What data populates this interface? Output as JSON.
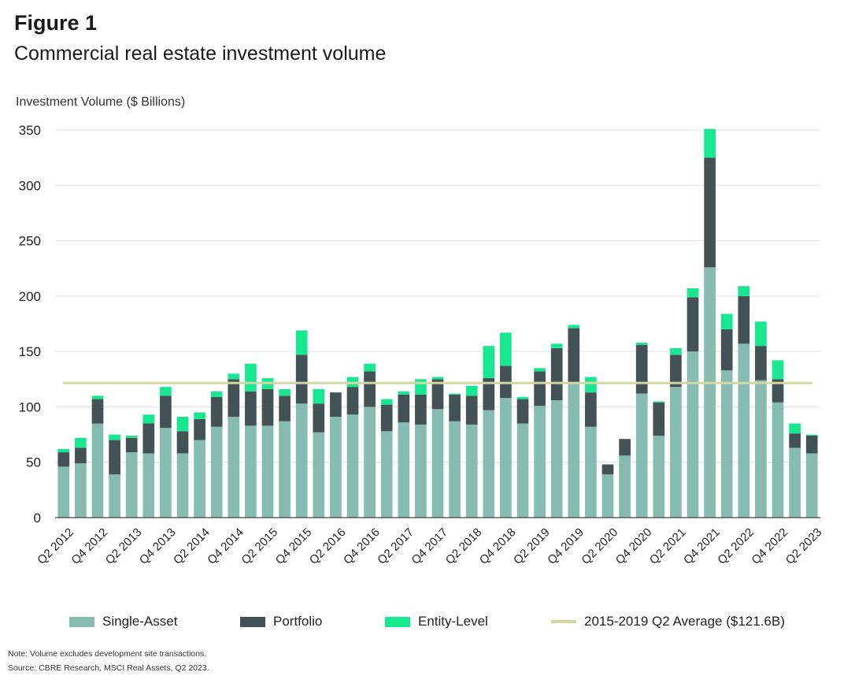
{
  "figure_label": "Figure 1",
  "title": "Commercial real estate investment volume",
  "note": "Note: Volume excludes development site transactions.",
  "source": "Source: CBRE Research, MSCI Real Assets, Q2 2023.",
  "colors": {
    "single_asset": "#86bcaf",
    "portfolio": "#435254",
    "entity_level": "#17e88f",
    "average_line": "#d2d6a4",
    "grid": "#e2e2e2",
    "axis": "#444444"
  },
  "legend": {
    "single_asset": "Single-Asset",
    "portfolio": "Portfolio",
    "entity_level": "Entity-Level",
    "average": "2015-2019 Q2 Average ($121.6B)"
  },
  "chart_data": {
    "type": "bar",
    "stacked": true,
    "ylabel": "Investment Volume ($ Billions)",
    "ylim": [
      0,
      350
    ],
    "yticks": [
      0,
      50,
      100,
      150,
      200,
      250,
      300,
      350
    ],
    "grid": true,
    "legend_position": "bottom",
    "categories": [
      "Q2 2012",
      "Q3 2012",
      "Q4 2012",
      "Q1 2013",
      "Q2 2013",
      "Q3 2013",
      "Q4 2013",
      "Q1 2014",
      "Q2 2014",
      "Q3 2014",
      "Q4 2014",
      "Q1 2015",
      "Q2 2015",
      "Q3 2015",
      "Q4 2015",
      "Q1 2016",
      "Q2 2016",
      "Q3 2016",
      "Q4 2016",
      "Q1 2017",
      "Q2 2017",
      "Q3 2017",
      "Q4 2017",
      "Q1 2018",
      "Q2 2018",
      "Q3 2018",
      "Q4 2018",
      "Q1 2019",
      "Q2 2019",
      "Q3 2019",
      "Q4 2019",
      "Q1 2020",
      "Q2 2020",
      "Q3 2020",
      "Q4 2020",
      "Q1 2021",
      "Q2 2021",
      "Q3 2021",
      "Q4 2021",
      "Q1 2022",
      "Q2 2022",
      "Q3 2022",
      "Q4 2022",
      "Q1 2023",
      "Q2 2023"
    ],
    "tick_labels": [
      "Q2 2012",
      "Q4 2012",
      "Q2 2013",
      "Q4 2013",
      "Q2 2014",
      "Q4 2014",
      "Q2 2015",
      "Q4 2015",
      "Q2 2016",
      "Q4 2016",
      "Q2 2017",
      "Q4 2017",
      "Q2 2018",
      "Q4 2018",
      "Q2 2019",
      "Q4 2019",
      "Q2 2020",
      "Q4 2020",
      "Q2 2021",
      "Q4 2021",
      "Q2 2022",
      "Q4 2022",
      "Q2 2023"
    ],
    "series": [
      {
        "name": "Single-Asset",
        "values": [
          46,
          49,
          85,
          39,
          59,
          58,
          81,
          58,
          70,
          82,
          91,
          83,
          83,
          87,
          103,
          77,
          91,
          93,
          100,
          78,
          86,
          84,
          98,
          87,
          84,
          97,
          108,
          85,
          101,
          106,
          122,
          82,
          39,
          56,
          112,
          74,
          118,
          150,
          226,
          133,
          157,
          124,
          104,
          63,
          58
        ]
      },
      {
        "name": "Portfolio",
        "values": [
          13,
          14,
          22,
          31,
          13,
          27,
          29,
          20,
          19,
          27,
          34,
          31,
          33,
          23,
          44,
          26,
          22,
          25,
          32,
          24,
          25,
          27,
          27,
          24,
          26,
          29,
          29,
          22,
          31,
          47,
          49,
          31,
          9,
          15,
          44,
          30,
          29,
          49,
          99,
          37,
          43,
          31,
          21,
          13,
          16
        ]
      },
      {
        "name": "Entity-Level",
        "values": [
          3,
          9,
          3,
          5,
          2,
          8,
          8,
          13,
          6,
          5,
          5,
          25,
          10,
          6,
          22,
          13,
          0,
          9,
          7,
          5,
          3,
          14,
          2,
          1,
          9,
          29,
          30,
          2,
          3,
          4,
          3,
          14,
          0,
          0,
          2,
          1,
          6,
          8,
          26,
          14,
          9,
          22,
          17,
          9,
          1
        ]
      }
    ],
    "reference_line": {
      "name": "2015-2019 Q2 Average ($121.6B)",
      "value": 121.6
    }
  }
}
